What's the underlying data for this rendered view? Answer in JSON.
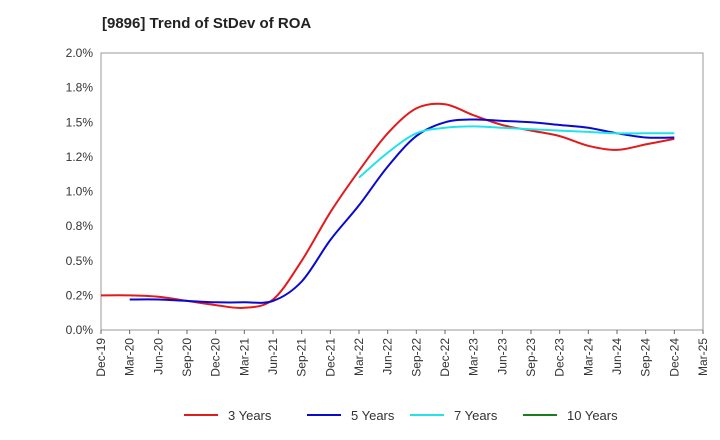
{
  "chart_data": {
    "type": "line",
    "title": "[9896]  Trend of StDev of ROA",
    "x_categories": [
      "Dec-19",
      "Mar-20",
      "Jun-20",
      "Sep-20",
      "Dec-20",
      "Mar-21",
      "Jun-21",
      "Sep-21",
      "Dec-21",
      "Mar-22",
      "Jun-22",
      "Sep-22",
      "Dec-22",
      "Mar-23",
      "Jun-23",
      "Sep-23",
      "Dec-23",
      "Mar-24",
      "Jun-24",
      "Sep-24",
      "Dec-24",
      "Mar-25"
    ],
    "y_ticks": [
      "0.0%",
      "0.2%",
      "0.5%",
      "0.8%",
      "1.0%",
      "1.2%",
      "1.5%",
      "1.8%",
      "2.0%"
    ],
    "ylim": [
      0,
      2.0
    ],
    "grid": true,
    "legend_position": "bottom",
    "series": [
      {
        "name": "3 Years",
        "color": "#e31a1c",
        "start_index": 0,
        "values": [
          0.25,
          0.25,
          0.24,
          0.21,
          0.18,
          0.16,
          0.22,
          0.5,
          0.85,
          1.15,
          1.42,
          1.6,
          1.63,
          1.55,
          1.48,
          1.44,
          1.4,
          1.33,
          1.3,
          1.34,
          1.38
        ]
      },
      {
        "name": "5 Years",
        "color": "#0a0acf",
        "start_index": 1,
        "values": [
          0.22,
          0.22,
          0.21,
          0.2,
          0.2,
          0.21,
          0.35,
          0.65,
          0.9,
          1.18,
          1.4,
          1.5,
          1.52,
          1.51,
          1.5,
          1.48,
          1.46,
          1.42,
          1.39,
          1.39
        ]
      },
      {
        "name": "7 Years",
        "color": "#22e3e8",
        "start_index": 9,
        "values": [
          1.1,
          1.28,
          1.42,
          1.46,
          1.47,
          1.46,
          1.45,
          1.44,
          1.43,
          1.42,
          1.42,
          1.42
        ]
      },
      {
        "name": "10 Years",
        "color": "#1a7f1a",
        "start_index": 0,
        "values": []
      }
    ]
  }
}
